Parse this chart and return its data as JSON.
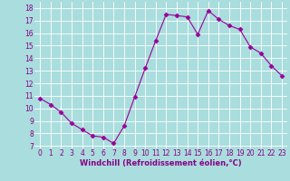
{
  "x": [
    0,
    1,
    2,
    3,
    4,
    5,
    6,
    7,
    8,
    9,
    10,
    11,
    12,
    13,
    14,
    15,
    16,
    17,
    18,
    19,
    20,
    21,
    22,
    23
  ],
  "y": [
    10.8,
    10.3,
    9.7,
    8.8,
    8.3,
    7.8,
    7.7,
    7.2,
    8.6,
    10.9,
    13.2,
    15.4,
    17.5,
    17.4,
    17.3,
    15.9,
    17.8,
    17.1,
    16.6,
    16.3,
    14.9,
    14.4,
    13.4,
    12.6
  ],
  "line_color": "#990099",
  "marker": "D",
  "marker_size": 2.5,
  "bg_color": "#aadddd",
  "grid_color": "#ffffff",
  "xlabel": "Windchill (Refroidissement éolien,°C)",
  "xlabel_color": "#880088",
  "xlabel_fontsize": 6.0,
  "tick_color": "#880088",
  "tick_fontsize": 5.5,
  "ylim": [
    6.8,
    18.5
  ],
  "xlim": [
    -0.5,
    23.5
  ],
  "yticks": [
    7,
    8,
    9,
    10,
    11,
    12,
    13,
    14,
    15,
    16,
    17,
    18
  ],
  "xticks": [
    0,
    1,
    2,
    3,
    4,
    5,
    6,
    7,
    8,
    9,
    10,
    11,
    12,
    13,
    14,
    15,
    16,
    17,
    18,
    19,
    20,
    21,
    22,
    23
  ]
}
